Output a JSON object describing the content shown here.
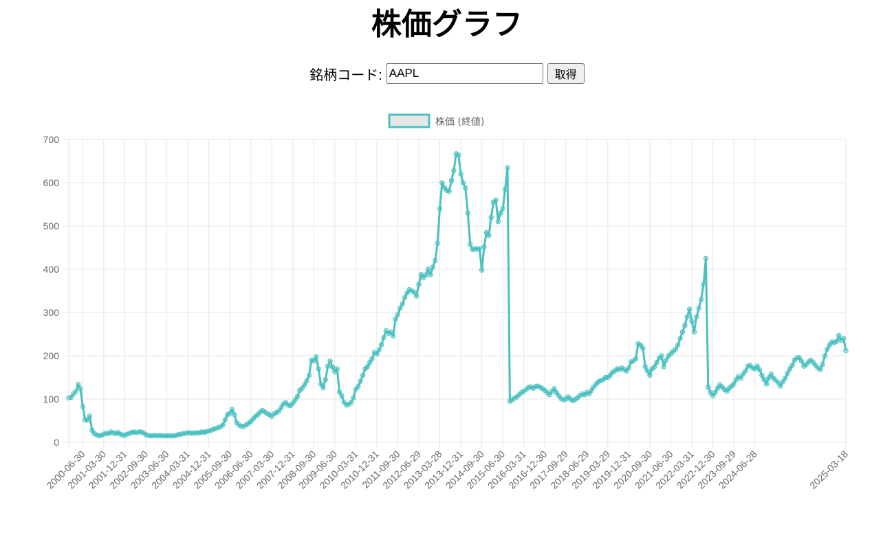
{
  "page": {
    "title": "株価グラフ",
    "form": {
      "label": "銘柄コード:",
      "input_value": "AAPL",
      "button_label": "取得"
    }
  },
  "colors": {
    "line": "#4bc0c0",
    "legend_fill": "#e6e6e6",
    "grid": "#e5e5e5",
    "tick_text": "#666666"
  },
  "chart_data": {
    "type": "line",
    "title": "",
    "legend": [
      {
        "label": "株価 (終値)",
        "color": "#4bc0c0"
      }
    ],
    "legend_position": "top",
    "xlabel": "",
    "ylabel": "",
    "ylim": [
      0,
      700
    ],
    "yticks": [
      0,
      100,
      200,
      300,
      400,
      500,
      600,
      700
    ],
    "grid": true,
    "x_tick_labels": [
      "2000-06-30",
      "2001-03-30",
      "2001-12-31",
      "2002-09-30",
      "2003-06-30",
      "2004-03-31",
      "2004-12-31",
      "2005-09-30",
      "2006-06-30",
      "2007-03-30",
      "2007-12-31",
      "2008-09-30",
      "2009-06-30",
      "2010-03-31",
      "2010-12-31",
      "2011-09-30",
      "2012-06-29",
      "2013-03-28",
      "2013-12-31",
      "2014-09-30",
      "2015-06-30",
      "2016-03-31",
      "2016-12-30",
      "2017-09-29",
      "2018-06-29",
      "2019-03-29",
      "2019-12-31",
      "2020-09-30",
      "2021-06-30",
      "2022-03-31",
      "2022-12-30",
      "2023-09-29",
      "2024-06-28",
      "2025-03-18"
    ],
    "first_tick_index": 6,
    "tick_every": 9,
    "series": [
      {
        "name": "株価 (終値)",
        "values": [
          103,
          104,
          112,
          117,
          134,
          124,
          83,
          52,
          51,
          61,
          28,
          20,
          17,
          15,
          16,
          19,
          21,
          20,
          24,
          22,
          20,
          23,
          19,
          17,
          16,
          19,
          21,
          23,
          24,
          22,
          24,
          24,
          22,
          18,
          16,
          15,
          15,
          16,
          15,
          16,
          15,
          15,
          15,
          15,
          15,
          15,
          16,
          18,
          19,
          20,
          21,
          22,
          22,
          21,
          22,
          22,
          22,
          24,
          23,
          25,
          26,
          28,
          30,
          32,
          34,
          36,
          40,
          52,
          64,
          67,
          76,
          64,
          45,
          40,
          37,
          37,
          40,
          44,
          48,
          54,
          60,
          64,
          70,
          74,
          70,
          66,
          64,
          60,
          66,
          69,
          72,
          80,
          89,
          92,
          86,
          85,
          90,
          98,
          106,
          120,
          125,
          133,
          142,
          155,
          190,
          188,
          198,
          170,
          135,
          126,
          145,
          176,
          188,
          174,
          163,
          170,
          116,
          107,
          92,
          86,
          88,
          92,
          103,
          123,
          129,
          141,
          155,
          170,
          175,
          185,
          193,
          208,
          204,
          214,
          226,
          242,
          258,
          252,
          255,
          246,
          285,
          295,
          310,
          320,
          335,
          345,
          353,
          350,
          347,
          338,
          365,
          388,
          381,
          387,
          400,
          387,
          405,
          420,
          460,
          540,
          600,
          588,
          582,
          580,
          605,
          628,
          667,
          664,
          620,
          600,
          587,
          530,
          458,
          445,
          448,
          446,
          448,
          398,
          452,
          485,
          478,
          520,
          555,
          560,
          510,
          530,
          540,
          585,
          635,
          95,
          98,
          102,
          105,
          110,
          115,
          118,
          122,
          127,
          128,
          125,
          129,
          130,
          127,
          124,
          120,
          115,
          110,
          118,
          124,
          115,
          108,
          101,
          98,
          100,
          105,
          100,
          96,
          99,
          103,
          108,
          112,
          110,
          115,
          112,
          120,
          128,
          135,
          140,
          143,
          145,
          150,
          150,
          155,
          162,
          165,
          170,
          168,
          172,
          168,
          165,
          172,
          186,
          188,
          193,
          228,
          225,
          218,
          175,
          165,
          155,
          170,
          175,
          185,
          195,
          200,
          175,
          190,
          200,
          205,
          210,
          215,
          225,
          240,
          255,
          270,
          290,
          308,
          280,
          255,
          290,
          310,
          330,
          365,
          425,
          128,
          115,
          108,
          115,
          125,
          133,
          128,
          122,
          118,
          125,
          130,
          135,
          145,
          152,
          148,
          158,
          165,
          176,
          178,
          172,
          170,
          176,
          168,
          155,
          145,
          135,
          150,
          158,
          148,
          143,
          138,
          130,
          140,
          148,
          160,
          170,
          178,
          190,
          195,
          196,
          188,
          176,
          180,
          186,
          190,
          185,
          178,
          172,
          168,
          180,
          200,
          215,
          225,
          232,
          230,
          233,
          247,
          236,
          240,
          212
        ]
      }
    ]
  }
}
